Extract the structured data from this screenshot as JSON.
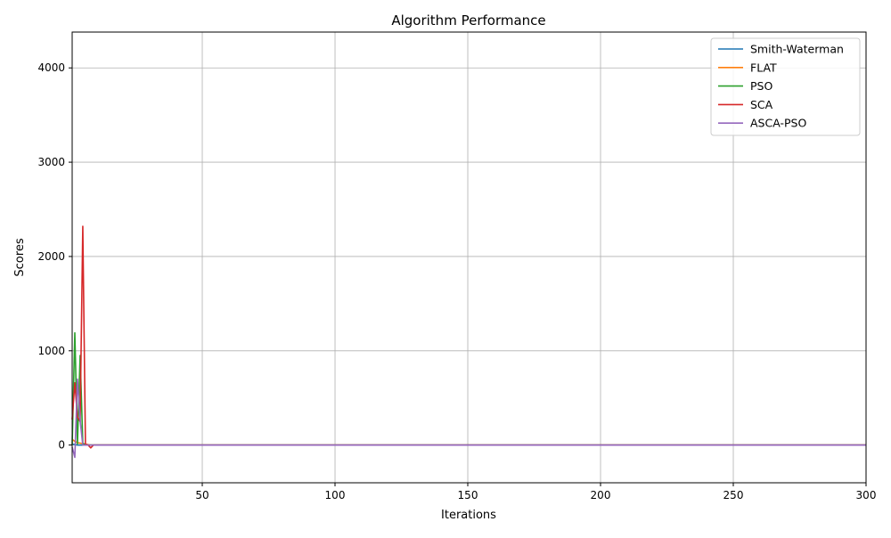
{
  "chart_data": {
    "type": "line",
    "title": "Algorithm Performance",
    "xlabel": "Iterations",
    "ylabel": "Scores",
    "xlim": [
      1,
      300
    ],
    "ylim": [
      -400,
      4380
    ],
    "xticks": [
      50,
      100,
      150,
      200,
      250,
      300
    ],
    "yticks": [
      0,
      1000,
      2000,
      3000,
      4000
    ],
    "grid": true,
    "legend_position": "top-right",
    "series": [
      {
        "name": "Smith-Waterman",
        "color": "#1f77b4",
        "x": [
          1,
          2,
          3,
          4,
          5,
          6,
          7,
          8,
          300
        ],
        "y": [
          10,
          5,
          0,
          0,
          0,
          0,
          0,
          0,
          0
        ]
      },
      {
        "name": "FLAT",
        "color": "#ff7f0e",
        "x": [
          1,
          2,
          3,
          4,
          5,
          6,
          7,
          8,
          300
        ],
        "y": [
          60,
          40,
          25,
          20,
          15,
          10,
          5,
          0,
          0
        ]
      },
      {
        "name": "PSO",
        "color": "#2ca02c",
        "x": [
          1,
          2,
          3,
          4,
          5,
          6,
          7,
          8,
          300
        ],
        "y": [
          0,
          1190,
          10,
          950,
          20,
          0,
          0,
          0,
          0
        ]
      },
      {
        "name": "SCA",
        "color": "#d62728",
        "x": [
          1,
          2,
          3,
          4,
          5,
          6,
          7,
          8,
          9,
          300
        ],
        "y": [
          270,
          660,
          300,
          250,
          2320,
          10,
          0,
          -30,
          0,
          0
        ]
      },
      {
        "name": "ASCA-PSO",
        "color": "#9467bd",
        "x": [
          1,
          2,
          3,
          4,
          5,
          6,
          7,
          8,
          300
        ],
        "y": [
          -20,
          -130,
          700,
          260,
          0,
          0,
          0,
          0,
          0
        ]
      }
    ]
  }
}
